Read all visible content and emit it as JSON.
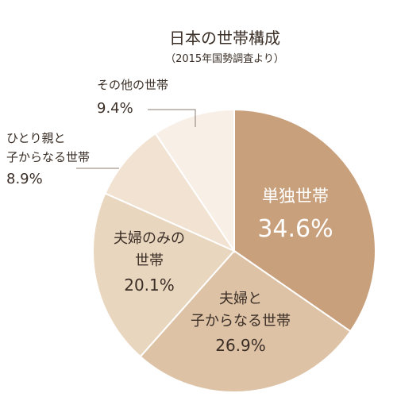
{
  "chart_data": {
    "type": "pie",
    "title": "日本の世帯構成",
    "subtitle": "（2015年国勢調査より）",
    "slices": [
      {
        "lines": [
          "単独世帯"
        ],
        "value": 34.6,
        "value_label": "34.6%",
        "color": "#c9a07c",
        "text_color": "#ffffff"
      },
      {
        "lines": [
          "夫婦と",
          "子からなる世帯"
        ],
        "value": 26.9,
        "value_label": "26.9%",
        "color": "#ddc2a5",
        "text_color": "#3a2e26"
      },
      {
        "lines": [
          "夫婦のみの",
          "世帯"
        ],
        "value": 20.1,
        "value_label": "20.1%",
        "color": "#e9d6bf",
        "text_color": "#3a2e26"
      },
      {
        "lines": [
          "ひとり親と",
          "子からなる世帯"
        ],
        "value": 8.9,
        "value_label": "8.9%",
        "color": "#f1e2d2",
        "text_color": "#3a2e26"
      },
      {
        "lines": [
          "その他の世帯"
        ],
        "value": 9.4,
        "value_label": "9.4%",
        "color": "#f8efe6",
        "text_color": "#3a2e26"
      }
    ]
  }
}
